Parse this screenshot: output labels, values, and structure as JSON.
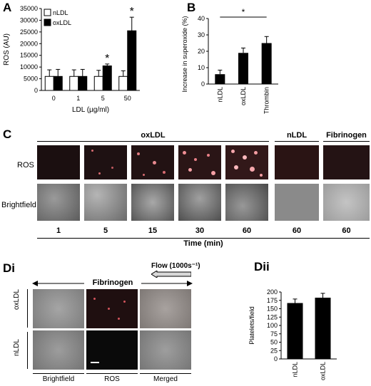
{
  "panels": {
    "A": {
      "label": "A"
    },
    "B": {
      "label": "B"
    },
    "C": {
      "label": "C"
    },
    "Di": {
      "label": "Di"
    },
    "Dii": {
      "label": "Dii"
    }
  },
  "chart_data": [
    {
      "id": "A",
      "type": "bar",
      "categories": [
        "0",
        "1",
        "5",
        "50"
      ],
      "series": [
        {
          "name": "nLDL",
          "values": [
            6000,
            6000,
            6000,
            6000
          ],
          "errors": [
            2800,
            2800,
            2600,
            2400
          ],
          "color": "#ffffff"
        },
        {
          "name": "oxLDL",
          "values": [
            6000,
            6000,
            10500,
            25500
          ],
          "errors": [
            3000,
            3000,
            800,
            5800
          ],
          "color": "#000000"
        }
      ],
      "significance": [
        "",
        "",
        "*",
        "*"
      ],
      "xlabel": "LDL (µg/ml)",
      "ylabel": "ROS (AU)",
      "ylim": [
        0,
        35000
      ],
      "yticks": [
        "0",
        "5000",
        "10000",
        "15000",
        "20000",
        "25000",
        "30000",
        "35000"
      ],
      "legend": "top-left"
    },
    {
      "id": "B",
      "type": "bar",
      "categories": [
        "nLDL",
        "oxLDL",
        "Thrombin"
      ],
      "values": [
        6,
        19,
        25
      ],
      "errors": [
        2.5,
        3,
        4
      ],
      "significance": "*",
      "ylabel": "Increase in superoxide (%)",
      "ylim": [
        0,
        40
      ],
      "yticks": [
        "0",
        "10",
        "20",
        "30",
        "40"
      ]
    },
    {
      "id": "Dii",
      "type": "bar",
      "categories": [
        "nLDL",
        "oxLDL"
      ],
      "values": [
        167,
        183
      ],
      "errors": [
        12,
        13
      ],
      "ylabel": "Platelets/field",
      "ylim": [
        0,
        200
      ],
      "yticks": [
        "0",
        "25",
        "50",
        "75",
        "100",
        "125",
        "150",
        "175",
        "200"
      ]
    }
  ],
  "panelC": {
    "groups": [
      "oxLDL",
      "nLDL",
      "Fibrinogen"
    ],
    "rows": [
      "ROS",
      "Brightfield"
    ],
    "times": [
      "1",
      "5",
      "15",
      "30",
      "60",
      "60",
      "60"
    ],
    "xlabel": "Time (min)"
  },
  "panelD": {
    "title": "Fibrinogen",
    "flow": "Flow (1000s⁻¹)",
    "rows": [
      "oxLDL",
      "nLDL"
    ],
    "columns": [
      "Brightfield",
      "ROS",
      "Merged"
    ]
  }
}
